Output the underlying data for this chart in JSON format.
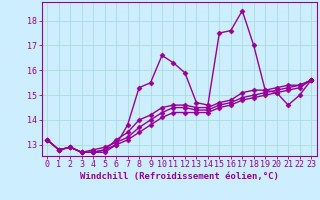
{
  "xlabel": "Windchill (Refroidissement éolien,°C)",
  "background_color": "#cceeff",
  "line_color": "#990099",
  "marker": "D",
  "markersize": 2.5,
  "linewidth": 1.0,
  "x": [
    0,
    1,
    2,
    3,
    4,
    5,
    6,
    7,
    8,
    9,
    10,
    11,
    12,
    13,
    14,
    15,
    16,
    17,
    18,
    19,
    20,
    21,
    22,
    23
  ],
  "series": [
    [
      13.2,
      12.8,
      12.9,
      12.7,
      12.7,
      12.7,
      13.0,
      13.8,
      15.3,
      15.5,
      16.6,
      16.3,
      15.9,
      14.7,
      14.6,
      17.5,
      17.6,
      18.4,
      17.0,
      15.2,
      15.1,
      14.6,
      15.0,
      15.6
    ],
    [
      13.2,
      12.8,
      12.9,
      12.7,
      12.7,
      12.8,
      13.2,
      13.5,
      14.0,
      14.2,
      14.5,
      14.6,
      14.6,
      14.5,
      14.5,
      14.7,
      14.8,
      15.1,
      15.2,
      15.2,
      15.3,
      15.4,
      15.4,
      15.6
    ],
    [
      13.2,
      12.8,
      12.9,
      12.7,
      12.8,
      12.9,
      13.1,
      13.3,
      13.7,
      14.0,
      14.3,
      14.5,
      14.5,
      14.4,
      14.4,
      14.6,
      14.7,
      14.9,
      15.0,
      15.1,
      15.2,
      15.3,
      15.4,
      15.6
    ],
    [
      13.2,
      12.8,
      12.9,
      12.7,
      12.7,
      12.8,
      13.0,
      13.2,
      13.5,
      13.8,
      14.1,
      14.3,
      14.3,
      14.3,
      14.3,
      14.5,
      14.6,
      14.8,
      14.9,
      15.0,
      15.1,
      15.2,
      15.3,
      15.6
    ]
  ],
  "xlim": [
    -0.5,
    23.5
  ],
  "ylim": [
    12.55,
    18.75
  ],
  "yticks": [
    13,
    14,
    15,
    16,
    17,
    18
  ],
  "xticks": [
    0,
    1,
    2,
    3,
    4,
    5,
    6,
    7,
    8,
    9,
    10,
    11,
    12,
    13,
    14,
    15,
    16,
    17,
    18,
    19,
    20,
    21,
    22,
    23
  ],
  "grid_color": "#aadddd",
  "axis_color": "#990099",
  "tick_color": "#990099",
  "label_color": "#990099",
  "xlabel_fontsize": 6.5,
  "tick_fontsize": 6.0
}
